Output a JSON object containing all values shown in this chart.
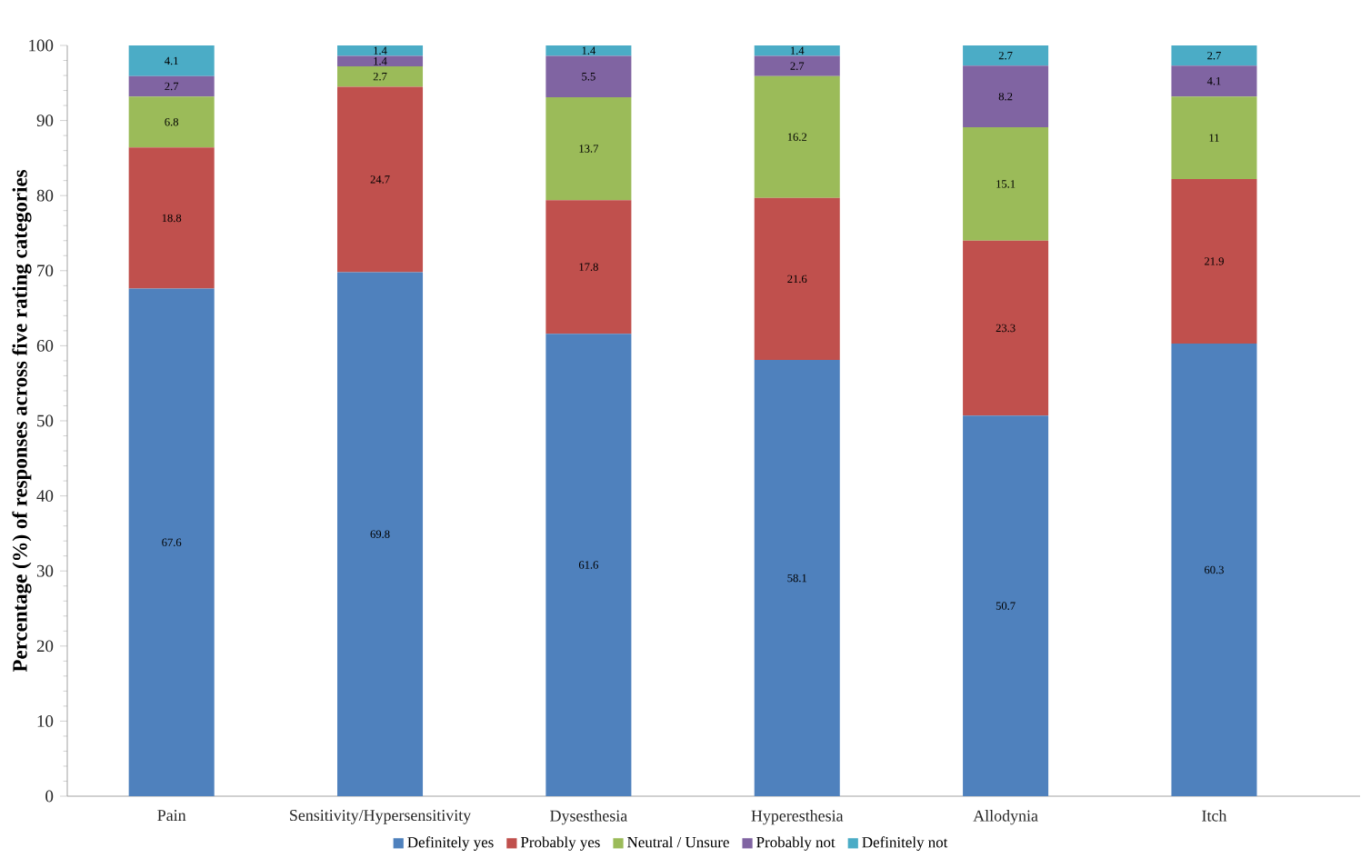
{
  "chart_data": {
    "type": "bar",
    "stacked": true,
    "ylabel": "Percentage (%) of responses across five rating categories",
    "categories": [
      "Pain",
      "Sensitivity/Hypersensitivity",
      "Dysesthesia",
      "Hyperesthesia",
      "Allodynia",
      "Itch"
    ],
    "series": [
      {
        "name": "Definitely yes",
        "color": "#4f81bd",
        "values": [
          67.6,
          69.8,
          61.6,
          58.1,
          50.7,
          60.3
        ]
      },
      {
        "name": "Probably yes",
        "color": "#c0504d",
        "values": [
          18.8,
          24.7,
          17.8,
          21.6,
          23.3,
          21.9
        ]
      },
      {
        "name": "Neutral / Unsure",
        "color": "#9bbb59",
        "values": [
          6.8,
          2.7,
          13.7,
          16.2,
          15.1,
          11
        ]
      },
      {
        "name": "Probably not",
        "color": "#8064a2",
        "values": [
          2.7,
          1.4,
          5.5,
          2.7,
          8.2,
          4.1
        ]
      },
      {
        "name": "Definitely not",
        "color": "#4bacc6",
        "values": [
          4.1,
          1.4,
          1.4,
          1.4,
          2.7,
          2.7
        ]
      }
    ],
    "ylim": [
      0,
      100
    ],
    "yticks": [
      0,
      {
        "value": 2,
        "label": null
      },
      {
        "value": 4,
        "label": null
      },
      {
        "value": 6,
        "label": null
      },
      {
        "value": 8,
        "label": null
      },
      10,
      {
        "value": 12,
        "label": null
      },
      {
        "value": 14,
        "label": null
      },
      {
        "value": 16,
        "label": null
      },
      {
        "value": 18,
        "label": null
      },
      20,
      {
        "value": 22,
        "label": null
      },
      {
        "value": 24,
        "label": null
      },
      {
        "value": 26,
        "label": null
      },
      {
        "value": 28,
        "label": null
      },
      30,
      {
        "value": 32,
        "label": null
      },
      {
        "value": 34,
        "label": null
      },
      {
        "value": 36,
        "label": null
      },
      {
        "value": 38,
        "label": null
      },
      40,
      {
        "value": 42,
        "label": null
      },
      {
        "value": 44,
        "label": null
      },
      {
        "value": 46,
        "label": null
      },
      {
        "value": 48,
        "label": null
      },
      50,
      {
        "value": 52,
        "label": null
      },
      {
        "value": 54,
        "label": null
      },
      {
        "value": 56,
        "label": null
      },
      {
        "value": 58,
        "label": null
      },
      60,
      {
        "value": 62,
        "label": null
      },
      {
        "value": 64,
        "label": null
      },
      {
        "value": 66,
        "label": null
      },
      {
        "value": 68,
        "label": null
      },
      70,
      {
        "value": 72,
        "label": null
      },
      {
        "value": 74,
        "label": null
      },
      {
        "value": 76,
        "label": null
      },
      {
        "value": 78,
        "label": null
      },
      80,
      {
        "value": 82,
        "label": null
      },
      {
        "value": 84,
        "label": null
      },
      {
        "value": 86,
        "label": null
      },
      {
        "value": 88,
        "label": null
      },
      90,
      {
        "value": 92,
        "label": null
      },
      {
        "value": 94,
        "label": null
      },
      {
        "value": 96,
        "label": null
      },
      {
        "value": 98,
        "label": null
      },
      100
    ],
    "legend": "bottom",
    "data_labels": true
  }
}
